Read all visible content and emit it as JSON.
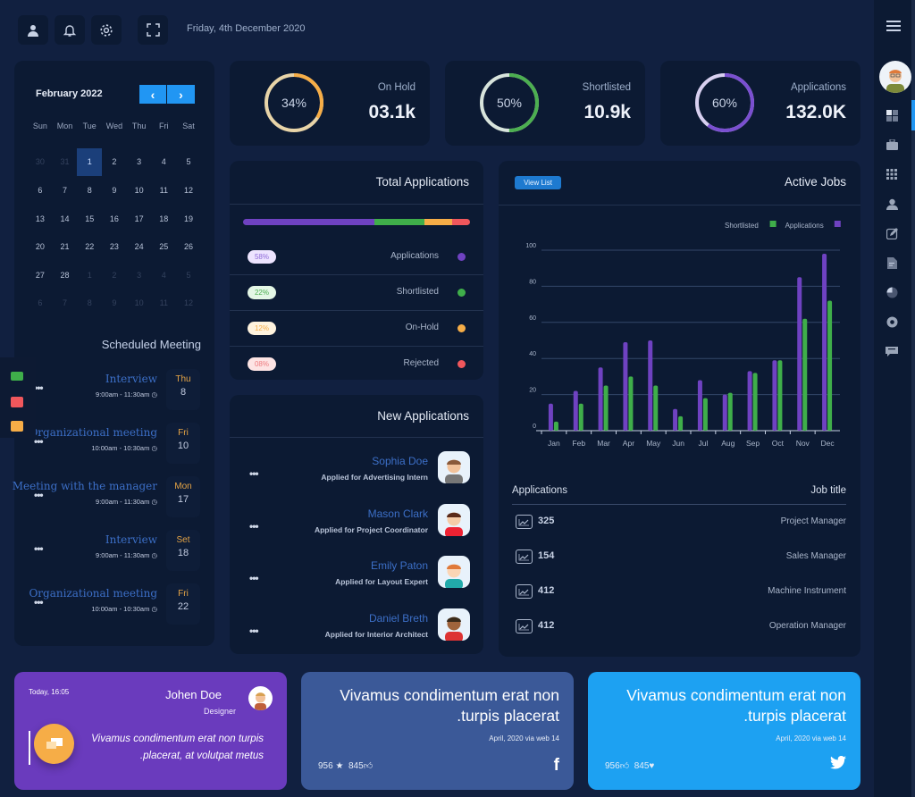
{
  "topbar": {
    "date": "Friday, 4th December 2020",
    "icons": [
      "user-icon",
      "bell-icon",
      "gear-icon",
      "fullscreen-icon"
    ]
  },
  "sidebar": {
    "icons": [
      "menu-icon",
      "avatar",
      "dashboard-icon",
      "briefcase-icon",
      "apps-grid-icon",
      "user-icon",
      "edit-icon",
      "document-icon",
      "pie-chart-icon",
      "settings-icon",
      "chat-icon"
    ]
  },
  "calendar": {
    "title": "February 2022",
    "prev": "‹",
    "next": "›",
    "weekdays": [
      "Sun",
      "Mon",
      "Tue",
      "Wed",
      "Thu",
      "Fri",
      "Sat"
    ],
    "days": [
      [
        "30",
        "31",
        "1",
        "2",
        "3",
        "4",
        "5"
      ],
      [
        "6",
        "7",
        "8",
        "9",
        "10",
        "11",
        "12"
      ],
      [
        "13",
        "14",
        "15",
        "16",
        "17",
        "18",
        "19"
      ],
      [
        "20",
        "21",
        "22",
        "23",
        "24",
        "25",
        "26"
      ],
      [
        "27",
        "28",
        "1",
        "2",
        "3",
        "4",
        "5"
      ],
      [
        "6",
        "7",
        "8",
        "9",
        "10",
        "11",
        "12"
      ]
    ],
    "selected": "1"
  },
  "meetings": {
    "title": "Scheduled Meeting",
    "items": [
      {
        "name": "Interview",
        "time": "9:00am - 11:30am",
        "day": "Thu",
        "date": "8"
      },
      {
        "name": "Organizational meeting",
        "time": "10:00am - 10:30am",
        "day": "Fri",
        "date": "10"
      },
      {
        "name": "Meeting with the manager",
        "time": "9:00am - 11:30am",
        "day": "Mon",
        "date": "17"
      },
      {
        "name": "Interview",
        "time": "9:00am - 11:30am",
        "day": "Set",
        "date": "18"
      },
      {
        "name": "Organizational meeting",
        "time": "10:00am - 10:30am",
        "day": "Fri",
        "date": "22"
      }
    ]
  },
  "stats": [
    {
      "label": "On Hold",
      "value": "03.1k",
      "percent_label": "34%",
      "percent": 34,
      "color": "#f6ad47",
      "track": "#e8d4a8"
    },
    {
      "label": "Shortlisted",
      "value": "10.9k",
      "percent_label": "50%",
      "percent": 50,
      "color": "#4caf50",
      "track": "#d8e4dc"
    },
    {
      "label": "Applications",
      "value": "132.0K",
      "percent_label": "60%",
      "percent": 60,
      "color": "#7a4fd0",
      "track": "#d8d0f0"
    }
  ],
  "total_applications": {
    "title": "Total Applications",
    "items": [
      {
        "label": "Applications",
        "pct": "58%",
        "value": 58,
        "color": "#6f42c1",
        "pill_bg": "#ede4ff",
        "pill_fg": "#8e6ad8"
      },
      {
        "label": "Shortlisted",
        "pct": "22%",
        "value": 22,
        "color": "#3fae4a",
        "pill_bg": "#e4f7e6",
        "pill_fg": "#4caf50"
      },
      {
        "label": "On-Hold",
        "pct": "12%",
        "value": 12,
        "color": "#f6ad47",
        "pill_bg": "#fff3de",
        "pill_fg": "#f6ad47"
      },
      {
        "label": "Rejected",
        "pct": "08%",
        "value": 8,
        "color": "#f0575c",
        "pill_bg": "#fde4e4",
        "pill_fg": "#ee7a7e"
      }
    ]
  },
  "new_applications": {
    "title": "New Applications",
    "items": [
      {
        "name": "Sophia Doe",
        "job": "Applied for Advertising Intern"
      },
      {
        "name": "Mason Clark",
        "job": "Applied for Project Coordinator"
      },
      {
        "name": "Emily Paton",
        "job": "Applied for Layout Expert"
      },
      {
        "name": "Daniel Breth",
        "job": "Applied for Interior Architect"
      }
    ]
  },
  "active_jobs": {
    "title": "Active Jobs",
    "view_list": "View List",
    "table_headers": {
      "left": "Applications",
      "right": "Job title"
    },
    "rows": [
      {
        "count": "325",
        "title": "Project Manager"
      },
      {
        "count": "154",
        "title": "Sales Manager"
      },
      {
        "count": "412",
        "title": "Machine Instrument"
      },
      {
        "count": "412",
        "title": "Operation Manager"
      }
    ]
  },
  "chart_data": {
    "type": "bar",
    "categories": [
      "Jan",
      "Feb",
      "Mar",
      "Apr",
      "May",
      "Jun",
      "Jul",
      "Aug",
      "Sep",
      "Oct",
      "Nov",
      "Dec"
    ],
    "series": [
      {
        "name": "Applications",
        "color": "#6f42c1",
        "values": [
          15,
          22,
          35,
          49,
          50,
          12,
          28,
          20,
          33,
          39,
          85,
          98
        ]
      },
      {
        "name": "Shortlisted",
        "color": "#3fae4a",
        "values": [
          5,
          15,
          25,
          30,
          25,
          8,
          18,
          21,
          32,
          39,
          62,
          72
        ]
      }
    ],
    "yticks": [
      "0",
      "20",
      "40",
      "60",
      "80",
      "100"
    ],
    "ylim": [
      0,
      100
    ],
    "grid": true,
    "legend": "top-right"
  },
  "bottom": {
    "message": {
      "time": "Today, 16:05",
      "name": "Johen Doe",
      "role": "Designer",
      "text": "Vivamus condimentum erat non turpis .placerat, at volutpat metus",
      "bg": "#6a3bbd"
    },
    "facebook": {
      "text": "Vivamus condimentum erat non .turpis placerat",
      "meta": "April, 2020 via web 14",
      "stat1": "956",
      "stat2": "845",
      "brand": "f",
      "bg": "#3b5998"
    },
    "twitter": {
      "text": "Vivamus condimentum erat non .turpis placerat",
      "meta": "April, 2020 via web 14",
      "stat1": "956",
      "stat2": "845",
      "brand": "🐦",
      "bg": "#1da1f2"
    }
  }
}
